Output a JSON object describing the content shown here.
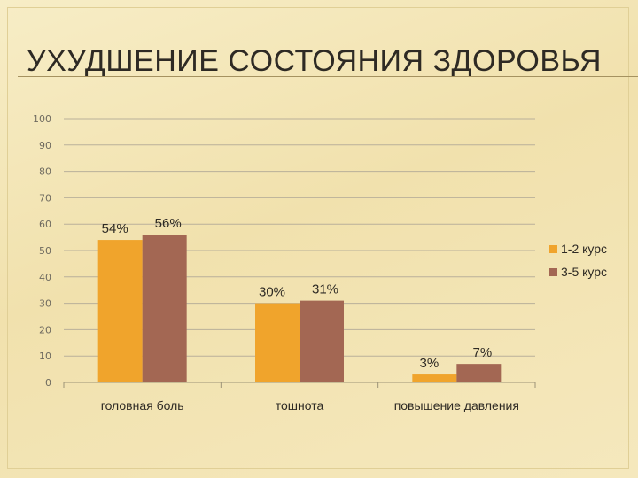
{
  "slide": {
    "title": "УХУДШЕНИЕ СОСТОЯНИЯ ЗДОРОВЬЯ"
  },
  "chart_data": {
    "type": "bar",
    "title": "",
    "xlabel": "",
    "ylabel": "",
    "ylim": [
      0,
      100
    ],
    "yticks": [
      0,
      10,
      20,
      30,
      40,
      50,
      60,
      70,
      80,
      90,
      100
    ],
    "grid": true,
    "legend_position": "right",
    "categories": [
      "головная боль",
      "тошнота",
      "повышение давления"
    ],
    "series": [
      {
        "name": "1-2 курс",
        "values": [
          54,
          30,
          3
        ],
        "labels": [
          "54%",
          "30%",
          "3%"
        ],
        "color": "#f0a42c"
      },
      {
        "name": "3-5 курс",
        "values": [
          56,
          31,
          7
        ],
        "labels": [
          "56%",
          "31%",
          "7%"
        ],
        "color": "#a36753"
      }
    ]
  }
}
